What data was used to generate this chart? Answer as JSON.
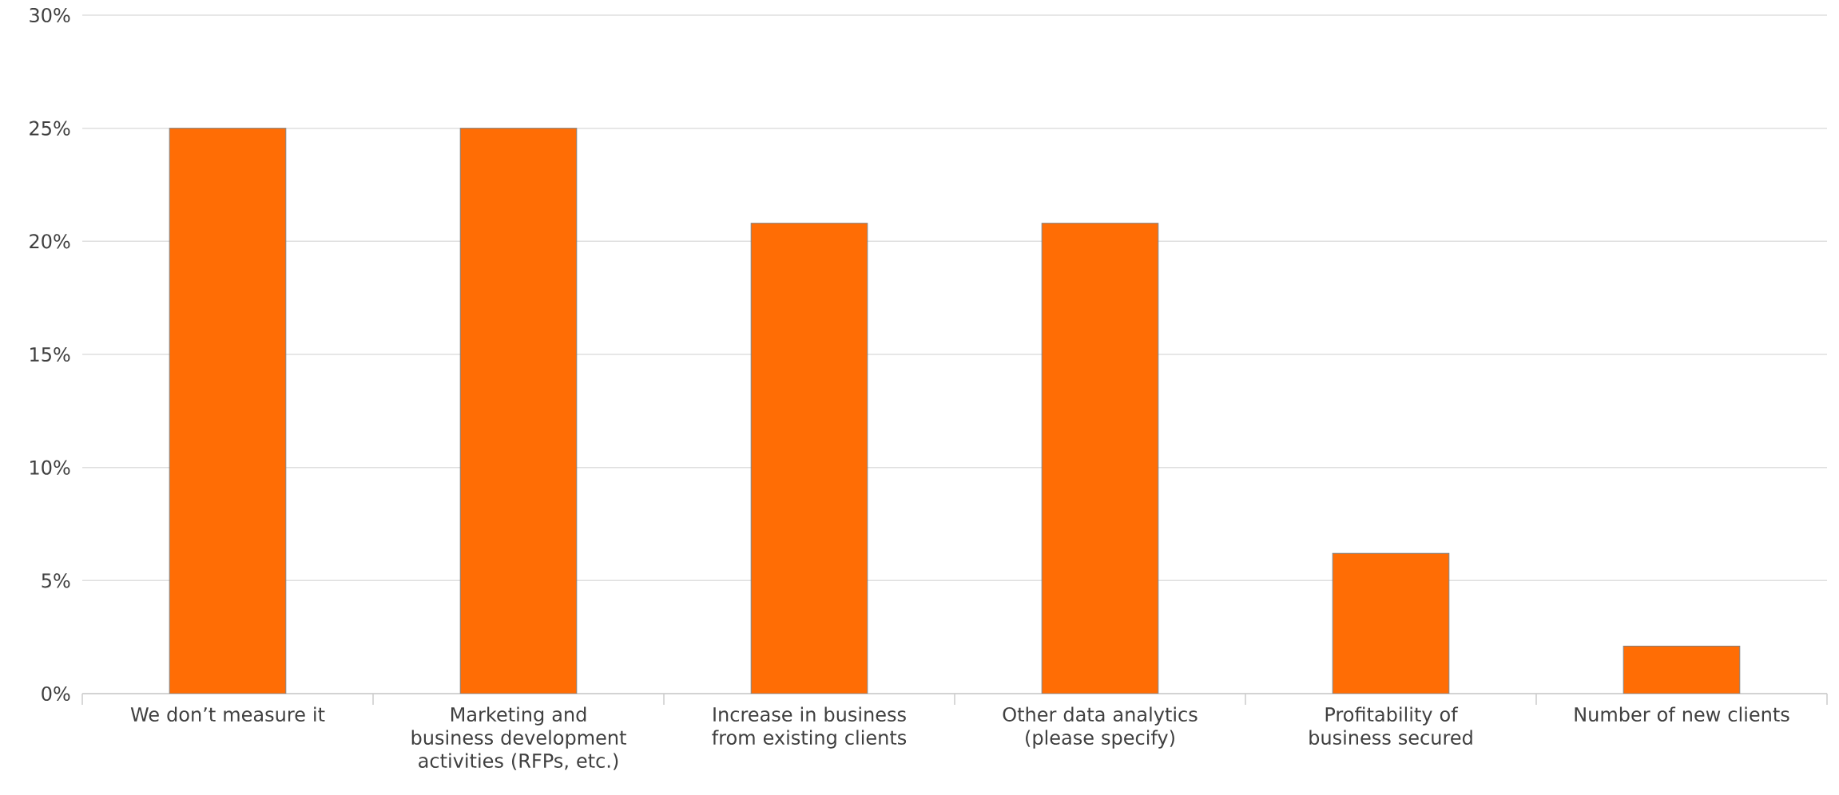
{
  "chart_data": {
    "type": "bar",
    "categories": [
      "We don’t measure it",
      "Marketing and business development activities (RFPs, etc.)",
      "Increase in business from existing clients",
      "Other data analytics (please specify)",
      "Profitability of business secured",
      "Number of new clients"
    ],
    "values": [
      25,
      25,
      20.8,
      20.8,
      6.2,
      2.1
    ],
    "color": "#ff6d05",
    "ylim": [
      0,
      30
    ],
    "yticks": [
      {
        "value": 0,
        "label": "0%"
      },
      {
        "value": 5,
        "label": "5%"
      },
      {
        "value": 10,
        "label": "10%"
      },
      {
        "value": 15,
        "label": "15%"
      },
      {
        "value": 20,
        "label": "20%"
      },
      {
        "value": 25,
        "label": "25%"
      },
      {
        "value": 30,
        "label": "30%"
      }
    ],
    "grid": "y"
  }
}
